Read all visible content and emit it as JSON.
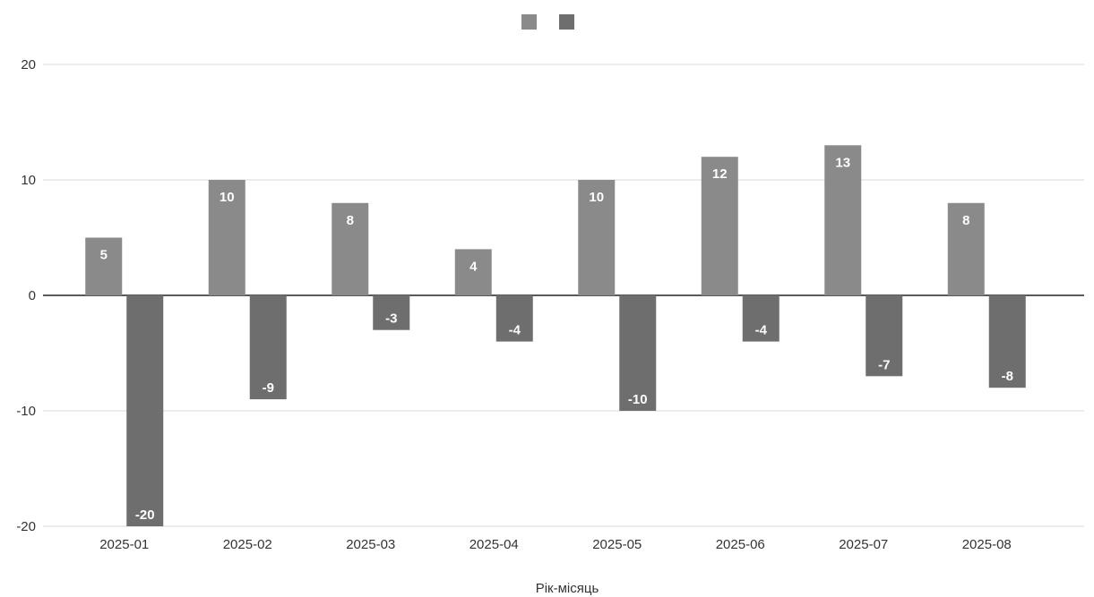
{
  "chart_data": {
    "type": "bar",
    "title": "",
    "xlabel": "Рік-місяць",
    "ylabel": "",
    "categories": [
      "2025-01",
      "2025-02",
      "2025-03",
      "2025-04",
      "2025-05",
      "2025-06",
      "2025-07",
      "2025-08"
    ],
    "series": [
      {
        "values": [
          5,
          10,
          8,
          4,
          10,
          12,
          13,
          8
        ],
        "color": "#8a8a8a"
      },
      {
        "values": [
          -20,
          -9,
          -3,
          -4,
          -10,
          -4,
          -7,
          -8
        ],
        "color": "#6e6e6e"
      }
    ],
    "ylim": [
      -20,
      20
    ],
    "yticks": [
      -20,
      -10,
      0,
      10,
      20
    ],
    "grid": true,
    "legend": "top-center",
    "data_labels": true
  }
}
